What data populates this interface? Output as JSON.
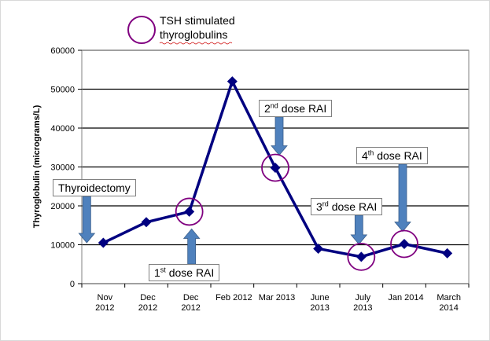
{
  "chart_data": {
    "type": "line",
    "title": "",
    "ylabel": "Thyroglobulin (micrograms/L)",
    "xlabel": "",
    "ylim": [
      0,
      60000
    ],
    "yticks": [
      0,
      10000,
      20000,
      30000,
      40000,
      50000,
      60000
    ],
    "grid": true,
    "series_color": "#000080",
    "categories": [
      [
        "Nov",
        "2012"
      ],
      [
        "Dec",
        "2012"
      ],
      [
        "Dec",
        "2012"
      ],
      [
        "Feb 2012"
      ],
      [
        "Mar 2013"
      ],
      [
        "June",
        "2013"
      ],
      [
        "July",
        "2013"
      ],
      [
        "Jan 2014"
      ],
      [
        "March",
        "2014"
      ]
    ],
    "values": [
      10500,
      15800,
      18500,
      52000,
      29800,
      9000,
      6900,
      10200,
      7800
    ],
    "highlighted_points": [
      2,
      4,
      6,
      7
    ],
    "highlight_color": "#800080",
    "legend": {
      "label_line1": "TSH stimulated",
      "label_line2": "thyroglobulins",
      "position": "top-left"
    },
    "arrow_color": "#4f81bd",
    "annotations": [
      {
        "key": "thyroidectomy",
        "text": "Thyroidectomy",
        "sup": "",
        "rest": ""
      },
      {
        "key": "dose1",
        "text": "1",
        "sup": "st",
        "rest": " dose RAI"
      },
      {
        "key": "dose2",
        "text": "2",
        "sup": "nd",
        "rest": " dose RAI"
      },
      {
        "key": "dose3",
        "text": "3",
        "sup": "rd",
        "rest": " dose RAI"
      },
      {
        "key": "dose4",
        "text": "4",
        "sup": "th",
        "rest": " dose RAI"
      }
    ]
  }
}
